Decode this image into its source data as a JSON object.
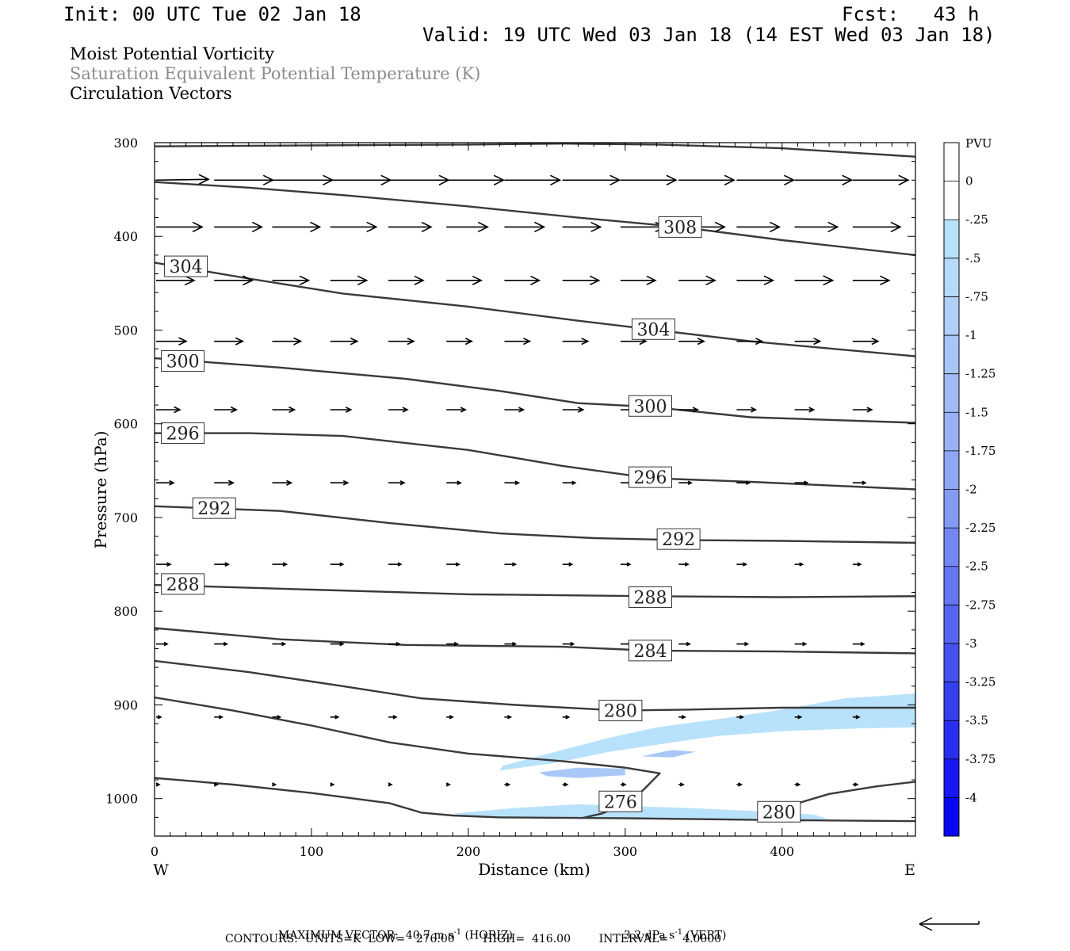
{
  "header": {
    "init": "Init: 00 UTC Tue 02 Jan 18",
    "fcst": "Fcst:   43 h",
    "valid": "Valid: 19 UTC Wed 03 Jan 18 (14 EST Wed 03 Jan 18)",
    "field1": "Moist Potential Vorticity",
    "field2": "Saturation Equivalent Potential Temperature (K)",
    "field3": "Circulation Vectors"
  },
  "colors": {
    "field2_text": "#8c8c8c",
    "contour": "#3a3a3a",
    "pv_light": "#b8e2fb",
    "pv_mid": "#a9c8f7"
  },
  "chart_data": {
    "type": "cross-section",
    "xlabel": "Distance (km)",
    "ylabel": "Pressure (hPa)",
    "xlim": [
      0,
      485
    ],
    "ylim": [
      300,
      1040
    ],
    "y_reversed": true,
    "x_ticks": [
      0,
      100,
      200,
      300,
      400
    ],
    "y_ticks": [
      300,
      400,
      500,
      600,
      700,
      800,
      900,
      1000
    ],
    "x_end_labels": {
      "left": "W",
      "right": "E"
    },
    "contour_units": "K",
    "contours": [
      {
        "label": "308",
        "label_at": [
          335,
          390
        ],
        "points": [
          [
            0,
            342
          ],
          [
            60,
            348
          ],
          [
            120,
            356
          ],
          [
            200,
            368
          ],
          [
            270,
            380
          ],
          [
            335,
            390
          ],
          [
            400,
            404
          ],
          [
            485,
            420
          ]
        ]
      },
      {
        "label": "304",
        "label_at": [
          20,
          432
        ],
        "points": [
          [
            0,
            428
          ],
          [
            60,
            445
          ],
          [
            120,
            461
          ],
          [
            200,
            475
          ],
          [
            270,
            490
          ],
          [
            315,
            499
          ],
          [
            380,
            512
          ],
          [
            485,
            528
          ]
        ]
      },
      {
        "label": "304",
        "label_at": [
          318,
          499
        ],
        "points": []
      },
      {
        "label": "300",
        "label_at": [
          18,
          533
        ],
        "points": [
          [
            0,
            530
          ],
          [
            80,
            540
          ],
          [
            160,
            552
          ],
          [
            220,
            565
          ],
          [
            270,
            578
          ],
          [
            316,
            582
          ],
          [
            380,
            593
          ],
          [
            485,
            599
          ]
        ]
      },
      {
        "label": "300",
        "label_at": [
          316,
          581
        ],
        "points": []
      },
      {
        "label": "296",
        "label_at": [
          18,
          610
        ],
        "points": [
          [
            0,
            610
          ],
          [
            60,
            610
          ],
          [
            120,
            613
          ],
          [
            200,
            628
          ],
          [
            260,
            645
          ],
          [
            316,
            658
          ],
          [
            380,
            662
          ],
          [
            485,
            670
          ]
        ]
      },
      {
        "label": "296",
        "label_at": [
          316,
          657
        ],
        "points": []
      },
      {
        "label": "292",
        "label_at": [
          38,
          690
        ],
        "points": [
          [
            0,
            688
          ],
          [
            80,
            693
          ],
          [
            150,
            706
          ],
          [
            220,
            717
          ],
          [
            280,
            722
          ],
          [
            335,
            724
          ],
          [
            400,
            725
          ],
          [
            485,
            727
          ]
        ]
      },
      {
        "label": "292",
        "label_at": [
          334,
          723
        ],
        "points": []
      },
      {
        "label": "288",
        "label_at": [
          18,
          771
        ],
        "points": [
          [
            0,
            772
          ],
          [
            100,
            777
          ],
          [
            200,
            782
          ],
          [
            316,
            784
          ],
          [
            400,
            785
          ],
          [
            485,
            784
          ]
        ]
      },
      {
        "label": "288",
        "label_at": [
          316,
          785
        ],
        "points": []
      },
      {
        "label": "284",
        "label_at": [
          316,
          842
        ],
        "points": [
          [
            0,
            818
          ],
          [
            80,
            830
          ],
          [
            160,
            836
          ],
          [
            260,
            838
          ],
          [
            316,
            842
          ],
          [
            400,
            843
          ],
          [
            485,
            845
          ]
        ]
      },
      {
        "label": "280",
        "label_at": [
          297,
          906
        ],
        "points": [
          [
            0,
            853
          ],
          [
            60,
            865
          ],
          [
            120,
            880
          ],
          [
            170,
            893
          ],
          [
            230,
            900
          ],
          [
            297,
            906
          ],
          [
            340,
            905
          ],
          [
            400,
            903
          ],
          [
            485,
            903
          ]
        ]
      },
      {
        "label": "276",
        "label_at": [
          297,
          1003
        ],
        "points": [
          [
            0,
            892
          ],
          [
            50,
            906
          ],
          [
            100,
            922
          ],
          [
            150,
            940
          ],
          [
            200,
            952
          ],
          [
            260,
            960
          ],
          [
            300,
            967
          ],
          [
            322,
            973
          ],
          [
            312,
            990
          ],
          [
            302,
            1005
          ],
          [
            285,
            1016
          ],
          [
            272,
            1021
          ]
        ]
      },
      {
        "label": "280",
        "label_at": [
          398,
          1014
        ],
        "points": [
          [
            0,
            978
          ],
          [
            50,
            985
          ],
          [
            100,
            994
          ],
          [
            150,
            1005
          ],
          [
            170,
            1015
          ],
          [
            190,
            1018
          ],
          [
            220,
            1020
          ],
          [
            300,
            1021
          ],
          [
            400,
            1023
          ],
          [
            485,
            1024
          ]
        ]
      },
      {
        "label": "",
        "label_at": null,
        "points": [
          [
            410,
            1005
          ],
          [
            430,
            995
          ],
          [
            460,
            987
          ],
          [
            485,
            982
          ]
        ]
      },
      {
        "label": "",
        "label_at": null,
        "points": [
          [
            0,
            304
          ],
          [
            100,
            303
          ],
          [
            200,
            302
          ],
          [
            260,
            301
          ],
          [
            320,
            302
          ],
          [
            400,
            306
          ],
          [
            485,
            315
          ]
        ]
      }
    ],
    "pv_shading": [
      {
        "level": "-0.25",
        "points": [
          [
            220,
            970
          ],
          [
            255,
            962
          ],
          [
            290,
            950
          ],
          [
            330,
            940
          ],
          [
            360,
            933
          ],
          [
            400,
            928
          ],
          [
            450,
            925
          ],
          [
            485,
            924
          ],
          [
            485,
            888
          ],
          [
            440,
            893
          ],
          [
            400,
            905
          ],
          [
            360,
            915
          ],
          [
            320,
            924
          ],
          [
            290,
            935
          ],
          [
            260,
            948
          ],
          [
            240,
            957
          ],
          [
            222,
            965
          ]
        ]
      },
      {
        "level": "-0.25",
        "points": [
          [
            190,
            1016
          ],
          [
            230,
            1010
          ],
          [
            270,
            1006
          ],
          [
            300,
            1008
          ],
          [
            340,
            1010
          ],
          [
            380,
            1013
          ],
          [
            420,
            1017
          ],
          [
            430,
            1022
          ],
          [
            380,
            1023
          ],
          [
            320,
            1022
          ],
          [
            260,
            1021
          ],
          [
            210,
            1020
          ]
        ]
      },
      {
        "level": "-0.5",
        "points": [
          [
            245,
            972
          ],
          [
            270,
            967
          ],
          [
            300,
            968
          ],
          [
            300,
            975
          ],
          [
            270,
            978
          ],
          [
            250,
            976
          ]
        ]
      },
      {
        "level": "-0.5",
        "points": [
          [
            310,
            955
          ],
          [
            330,
            948
          ],
          [
            345,
            950
          ],
          [
            330,
            956
          ]
        ]
      }
    ],
    "colorbar": {
      "label": "PVU",
      "ticks": [
        "0",
        "-.25",
        "-.5",
        "-.75",
        "-1",
        "-1.25",
        "-1.5",
        "-1.75",
        "-2",
        "-2.25",
        "-2.5",
        "-2.75",
        "-3",
        "-3.25",
        "-3.5",
        "-3.75",
        "-4"
      ],
      "colors": [
        "#ffffff",
        "#ffffff",
        "#b8e2fb",
        "#b6daf9",
        "#b1d0f8",
        "#a9c5f7",
        "#a2bbf6",
        "#9ab2f5",
        "#8ea6f4",
        "#839bf3",
        "#7587f2",
        "#6676f1",
        "#5665f0",
        "#4552ef",
        "#3440ee",
        "#2a2ef0",
        "#1818f3",
        "#0808f5"
      ]
    },
    "vector_rows": [
      {
        "p": 340,
        "x": [
          0,
          37,
          74,
          111,
          148,
          185,
          222,
          259,
          296,
          333,
          370,
          407,
          444
        ],
        "u": [
          33,
          37,
          38,
          38,
          38,
          36,
          35,
          36,
          35,
          35,
          36,
          36,
          35
        ],
        "w": [
          1,
          0,
          0,
          0,
          0,
          0,
          0,
          0,
          0,
          0,
          0,
          0,
          0
        ]
      },
      {
        "p": 390,
        "x": [
          0,
          37,
          74,
          111,
          148,
          185,
          222,
          259,
          296,
          333,
          370,
          407,
          444
        ],
        "u": [
          29,
          30,
          30,
          29,
          27,
          26,
          25,
          24,
          28,
          29,
          27,
          27,
          30
        ],
        "w": [
          0,
          0,
          0,
          0,
          0,
          0,
          0,
          0,
          0,
          0,
          0,
          0,
          0
        ]
      },
      {
        "p": 447,
        "x": [
          0,
          37,
          74,
          111,
          148,
          185,
          222,
          259,
          296,
          333,
          370,
          407,
          444
        ],
        "u": [
          24,
          24,
          23,
          23,
          22,
          22,
          22,
          23,
          22,
          23,
          23,
          24,
          23
        ],
        "w": [
          0,
          0,
          0,
          0,
          0,
          0,
          0,
          0,
          0,
          0,
          0,
          0,
          0
        ]
      },
      {
        "p": 512,
        "x": [
          0,
          37,
          74,
          111,
          148,
          185,
          222,
          259,
          296,
          333,
          370,
          407,
          444
        ],
        "u": [
          19,
          18,
          18,
          17,
          16,
          16,
          16,
          16,
          16,
          16,
          16,
          16,
          16
        ],
        "w": [
          0,
          0,
          0,
          0,
          0,
          0,
          0,
          0,
          0,
          0,
          0,
          0,
          0
        ]
      },
      {
        "p": 585,
        "x": [
          0,
          37,
          74,
          111,
          148,
          185,
          222,
          259,
          296,
          333,
          370,
          407,
          444
        ],
        "u": [
          15,
          14,
          14,
          13,
          12,
          12,
          12,
          13,
          12,
          12,
          12,
          12,
          12
        ],
        "w": [
          0,
          0,
          0,
          0,
          0,
          0,
          0,
          0,
          0,
          0,
          0,
          0,
          0
        ]
      },
      {
        "p": 663,
        "x": [
          0,
          37,
          74,
          111,
          148,
          185,
          222,
          259,
          296,
          333,
          370,
          407,
          444
        ],
        "u": [
          11,
          12,
          12,
          11,
          10,
          9,
          9,
          8,
          8,
          8,
          8,
          8,
          8
        ],
        "w": [
          0,
          0,
          0,
          0,
          0,
          0,
          0,
          0,
          0,
          0,
          0,
          0,
          0
        ]
      },
      {
        "p": 750,
        "x": [
          0,
          37,
          74,
          111,
          148,
          185,
          222,
          259,
          296,
          333,
          370,
          407,
          444
        ],
        "u": [
          9,
          9,
          9,
          8,
          8,
          8,
          7,
          6,
          6,
          6,
          6,
          5,
          5
        ],
        "w": [
          0,
          0,
          0,
          0,
          0,
          0,
          0,
          0,
          0,
          0,
          0,
          0,
          0
        ]
      },
      {
        "p": 835,
        "x": [
          0,
          37,
          74,
          111,
          148,
          185,
          222,
          259,
          296,
          333,
          370,
          407,
          444
        ],
        "u": [
          7,
          8,
          8,
          8,
          7,
          7,
          7,
          7,
          7,
          7,
          7,
          7,
          7
        ],
        "w": [
          0,
          0,
          0,
          0,
          0,
          0,
          0,
          0,
          0,
          0,
          0,
          0,
          0
        ]
      },
      {
        "p": 913,
        "x": [
          0,
          37,
          74,
          111,
          148,
          185,
          222,
          259,
          296,
          333,
          370,
          407,
          444
        ],
        "u": [
          3,
          5,
          5,
          5,
          5,
          4,
          4,
          4,
          4,
          4,
          4,
          4,
          4
        ],
        "w": [
          0,
          0,
          0,
          0,
          0,
          0,
          0,
          0,
          0,
          0,
          0,
          0,
          0
        ]
      },
      {
        "p": 985,
        "x": [
          0,
          37,
          74,
          111,
          148,
          185,
          222,
          259,
          296,
          333,
          370,
          407,
          444
        ],
        "u": [
          2,
          2,
          2,
          2,
          2,
          2,
          3,
          3,
          3,
          3,
          3,
          3,
          3
        ],
        "w": [
          0,
          0,
          0,
          0,
          0,
          0,
          0,
          0,
          0,
          0,
          0,
          0,
          0
        ]
      }
    ]
  },
  "footer": {
    "max_vector_label": "MAXIMUM VECTOR:",
    "horiz_value": "40.7 m s",
    "horiz_exp": "-1",
    "horiz_tag": "(HORIZ)",
    "vert_value": "3.2 dPa s",
    "vert_exp": "-1",
    "vert_tag": "(VERT)",
    "contours_line": "CONTOURS:  UNITS=K  LOW=   276.00        HIGH=  416.00        INTERVAL=    4.0000"
  }
}
